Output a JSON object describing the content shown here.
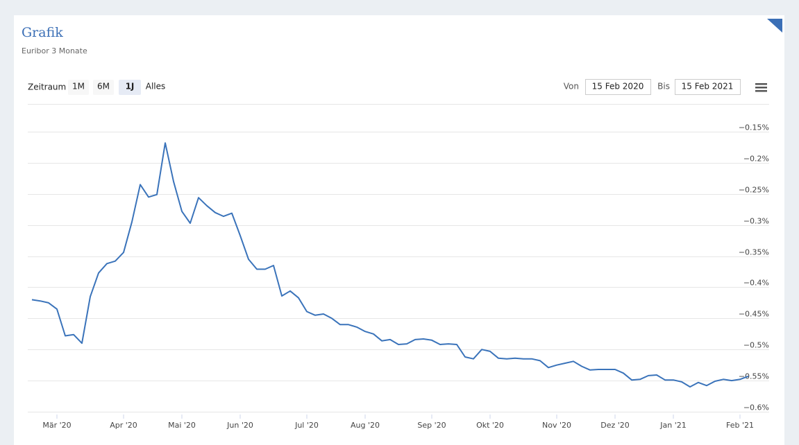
{
  "chart_data": {
    "type": "line",
    "title": "Grafik",
    "subtitle": "Euribor 3 Monate",
    "color": "#3a73ba",
    "grid": true,
    "categories": [
      null,
      null,
      null,
      "Mär '20",
      null,
      null,
      null,
      null,
      null,
      null,
      null,
      "Apr '20",
      null,
      null,
      null,
      null,
      null,
      null,
      "Mai '20",
      null,
      null,
      null,
      null,
      null,
      null,
      "Jun '20",
      null,
      null,
      null,
      null,
      null,
      null,
      null,
      "Jul '20",
      null,
      null,
      null,
      null,
      null,
      null,
      "Aug '20",
      null,
      null,
      null,
      null,
      null,
      null,
      null,
      "Sep '20",
      null,
      null,
      null,
      null,
      null,
      null,
      "Okt '20",
      null,
      null,
      null,
      null,
      null,
      null,
      null,
      "Nov '20",
      null,
      null,
      null,
      null,
      null,
      null,
      "Dez '20",
      null,
      null,
      null,
      null,
      null,
      null,
      "Jan '21",
      null,
      null,
      null,
      null,
      null,
      null,
      null,
      "Feb '21",
      null
    ],
    "values": [
      -0.42,
      -0.422,
      -0.425,
      -0.435,
      -0.478,
      -0.476,
      -0.49,
      -0.415,
      -0.377,
      -0.362,
      -0.358,
      -0.344,
      -0.295,
      -0.235,
      -0.255,
      -0.251,
      -0.168,
      -0.23,
      -0.278,
      -0.297,
      -0.256,
      -0.269,
      -0.28,
      -0.286,
      -0.281,
      -0.317,
      -0.355,
      -0.371,
      -0.371,
      -0.365,
      -0.414,
      -0.406,
      -0.417,
      -0.439,
      -0.445,
      -0.443,
      -0.45,
      -0.46,
      -0.46,
      -0.464,
      -0.471,
      -0.475,
      -0.486,
      -0.484,
      -0.492,
      -0.491,
      -0.484,
      -0.483,
      -0.485,
      -0.492,
      -0.491,
      -0.492,
      -0.512,
      -0.515,
      -0.5,
      -0.503,
      -0.514,
      -0.515,
      -0.514,
      -0.515,
      -0.515,
      -0.518,
      -0.529,
      -0.525,
      -0.522,
      -0.519,
      -0.527,
      -0.533,
      -0.532,
      -0.532,
      -0.532,
      -0.538,
      -0.549,
      -0.548,
      -0.542,
      -0.541,
      -0.549,
      -0.549,
      -0.552,
      -0.56,
      -0.553,
      -0.558,
      -0.551,
      -0.548,
      -0.55,
      -0.548,
      -0.543
    ],
    "ylim": [
      -0.6,
      -0.15
    ],
    "yticks": [
      {
        "value": -0.15,
        "label": "−0.15%"
      },
      {
        "value": -0.2,
        "label": "−0.2%"
      },
      {
        "value": -0.25,
        "label": "−0.25%"
      },
      {
        "value": -0.3,
        "label": "−0.3%"
      },
      {
        "value": -0.35,
        "label": "−0.35%"
      },
      {
        "value": -0.4,
        "label": "−0.4%"
      },
      {
        "value": -0.45,
        "label": "−0.45%"
      },
      {
        "value": -0.5,
        "label": "−0.5%"
      },
      {
        "value": -0.55,
        "label": "−0.55%"
      },
      {
        "value": -0.6,
        "label": "−0.6%"
      }
    ]
  },
  "ui": {
    "range_label": "Zeitraum",
    "buttons": [
      "1M",
      "6M",
      "1J",
      "Alles"
    ],
    "from_label": "Von",
    "from_date": "15 Feb 2020",
    "to_label": "Bis",
    "to_date": "15 Feb 2021"
  }
}
